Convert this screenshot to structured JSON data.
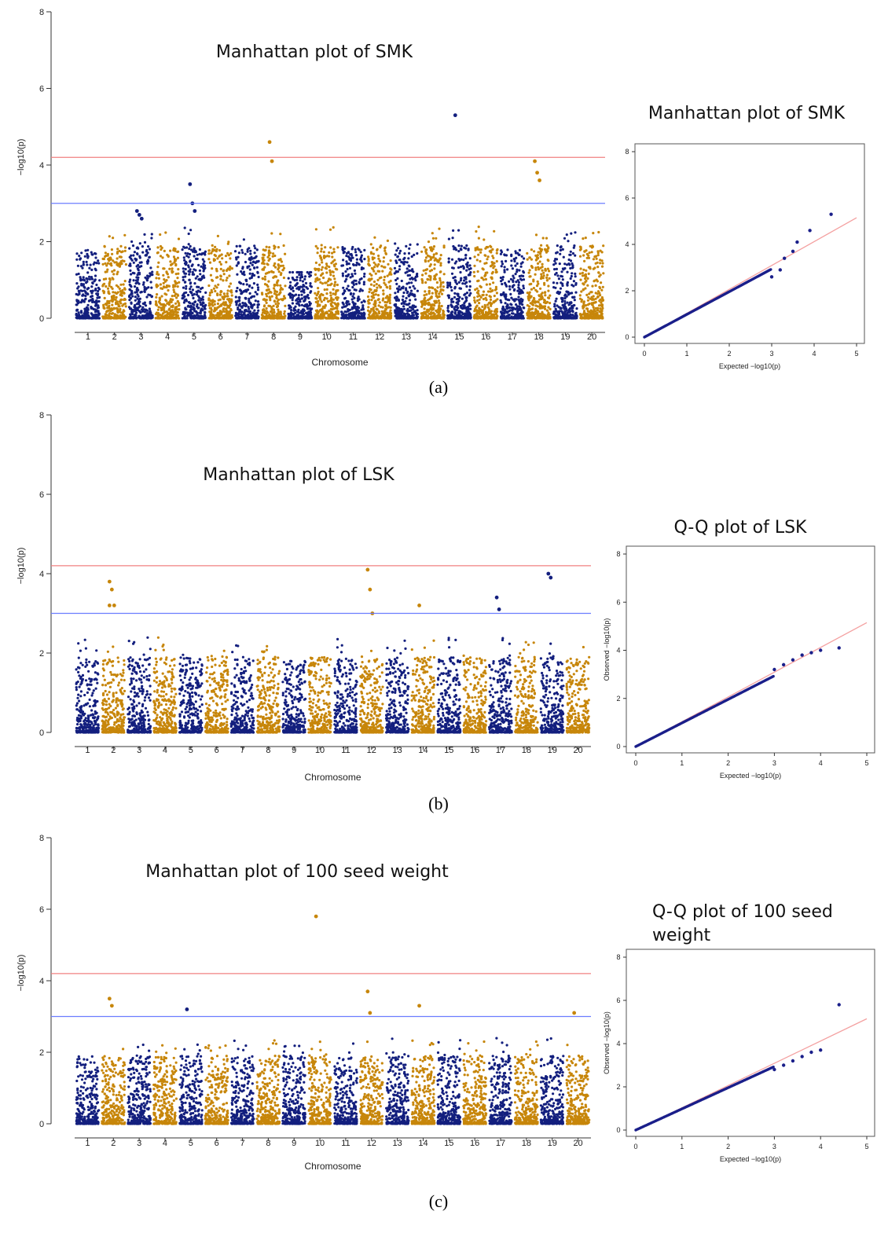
{
  "colors": {
    "blue": "#131f7e",
    "gold": "#c7860a",
    "red_line": "#f08080",
    "blue_line": "#6b7dff",
    "qq_line": "#f4a0a0",
    "qq_point": "#1a1f8a"
  },
  "panels": [
    {
      "label": "(a)",
      "manhattan_title": "Manhattan plot of SMK",
      "qq_title": "Manhattan plot of SMK",
      "qq_ylabel": ""
    },
    {
      "label": "(b)",
      "manhattan_title": "Manhattan plot of LSK",
      "qq_title": "Q-Q plot of LSK",
      "qq_ylabel": "Observed −log10(p)"
    },
    {
      "label": "(c)",
      "manhattan_title": "Manhattan plot of 100 seed weight",
      "qq_title": "Q-Q plot of 100 seed weight",
      "qq_ylabel": "Observed −log10(p)"
    }
  ],
  "chart_data": [
    {
      "type": "scatter",
      "subtype": "manhattan",
      "title": "Manhattan plot of SMK",
      "xlabel": "Chromosome",
      "ylabel": "−log10(p)",
      "categories": [
        "1",
        "2",
        "3",
        "4",
        "5",
        "6",
        "7",
        "8",
        "9",
        "10",
        "11",
        "12",
        "13",
        "14",
        "15",
        "16",
        "17",
        "18",
        "19",
        "20"
      ],
      "ylim": [
        0,
        8
      ],
      "yticks": [
        0,
        2,
        4,
        6,
        8
      ],
      "thresholds": [
        4.2,
        3.0
      ],
      "chrom_max": [
        1.8,
        2.2,
        2.8,
        2.4,
        3.5,
        2.2,
        2.1,
        4.6,
        1.2,
        2.4,
        1.9,
        2.2,
        2.0,
        2.4,
        5.3,
        2.4,
        1.8,
        4.1,
        2.5,
        2.5
      ],
      "peaks": [
        {
          "chrom": 3,
          "values": [
            2.8,
            2.7,
            2.6
          ]
        },
        {
          "chrom": 5,
          "values": [
            3.5,
            3.0,
            2.8
          ]
        },
        {
          "chrom": 8,
          "values": [
            4.6,
            4.1
          ]
        },
        {
          "chrom": 15,
          "values": [
            5.3
          ]
        },
        {
          "chrom": 18,
          "values": [
            4.1,
            3.8,
            3.6
          ]
        }
      ]
    },
    {
      "type": "scatter",
      "subtype": "qq",
      "title": "Manhattan plot of SMK",
      "xlabel": "Expected −log10(p)",
      "ylabel": "",
      "xlim": [
        0,
        5
      ],
      "ylim": [
        0,
        8
      ],
      "xticks": [
        0,
        1,
        2,
        3,
        4,
        5
      ],
      "yticks": [
        0,
        2,
        4,
        6,
        8
      ],
      "tail_points": [
        [
          3.0,
          2.6
        ],
        [
          3.2,
          2.9
        ],
        [
          3.3,
          3.4
        ],
        [
          3.5,
          3.7
        ],
        [
          3.6,
          4.1
        ],
        [
          3.9,
          4.6
        ],
        [
          4.4,
          5.3
        ]
      ]
    },
    {
      "type": "scatter",
      "subtype": "manhattan",
      "title": "Manhattan plot of LSK",
      "xlabel": "Chromosome",
      "ylabel": "−log10(p)",
      "categories": [
        "1",
        "2",
        "3",
        "4",
        "5",
        "6",
        "7",
        "8",
        "9",
        "10",
        "11",
        "12",
        "13",
        "14",
        "15",
        "16",
        "17",
        "18",
        "19",
        "20"
      ],
      "ylim": [
        0,
        8
      ],
      "yticks": [
        0,
        2,
        4,
        6,
        8
      ],
      "thresholds": [
        4.2,
        3.0
      ],
      "chrom_max": [
        2.6,
        3.8,
        2.5,
        2.5,
        2.1,
        2.1,
        2.6,
        3.0,
        1.8,
        2.1,
        3.0,
        4.1,
        2.4,
        3.2,
        2.7,
        2.1,
        3.4,
        3.0,
        4.0,
        2.2
      ],
      "peaks": [
        {
          "chrom": 2,
          "values": [
            3.8,
            3.6,
            3.2,
            3.2
          ]
        },
        {
          "chrom": 12,
          "values": [
            4.1,
            3.6,
            3.0
          ]
        },
        {
          "chrom": 14,
          "values": [
            3.2
          ]
        },
        {
          "chrom": 17,
          "values": [
            3.4,
            3.1
          ]
        },
        {
          "chrom": 19,
          "values": [
            4.0,
            3.9
          ]
        }
      ]
    },
    {
      "type": "scatter",
      "subtype": "qq",
      "title": "Q-Q plot of LSK",
      "xlabel": "Expected −log10(p)",
      "ylabel": "Observed −log10(p)",
      "xlim": [
        0,
        5
      ],
      "ylim": [
        0,
        8
      ],
      "xticks": [
        0,
        1,
        2,
        3,
        4,
        5
      ],
      "yticks": [
        0,
        2,
        4,
        6,
        8
      ],
      "tail_points": [
        [
          3.0,
          3.2
        ],
        [
          3.2,
          3.4
        ],
        [
          3.4,
          3.6
        ],
        [
          3.6,
          3.8
        ],
        [
          3.8,
          3.9
        ],
        [
          4.0,
          4.0
        ],
        [
          4.4,
          4.1
        ]
      ]
    },
    {
      "type": "scatter",
      "subtype": "manhattan",
      "title": "Manhattan plot of 100 seed weight",
      "xlabel": "Chromosome",
      "ylabel": "−log10(p)",
      "categories": [
        "1",
        "2",
        "3",
        "4",
        "5",
        "6",
        "7",
        "8",
        "9",
        "10",
        "11",
        "12",
        "13",
        "14",
        "15",
        "16",
        "17",
        "18",
        "19",
        "20"
      ],
      "ylim": [
        0,
        8
      ],
      "yticks": [
        0,
        2,
        4,
        6,
        8
      ],
      "thresholds": [
        4.2,
        3.0
      ],
      "chrom_max": [
        1.9,
        3.5,
        3.0,
        2.2,
        3.2,
        2.8,
        2.8,
        2.4,
        2.2,
        5.8,
        2.3,
        3.7,
        2.5,
        3.3,
        2.8,
        2.8,
        2.4,
        2.8,
        2.4,
        3.1
      ],
      "peaks": [
        {
          "chrom": 2,
          "values": [
            3.5,
            3.3
          ]
        },
        {
          "chrom": 5,
          "values": [
            3.2
          ]
        },
        {
          "chrom": 10,
          "values": [
            5.8
          ]
        },
        {
          "chrom": 12,
          "values": [
            3.7,
            3.1
          ]
        },
        {
          "chrom": 14,
          "values": [
            3.3
          ]
        },
        {
          "chrom": 20,
          "values": [
            3.1
          ]
        }
      ]
    },
    {
      "type": "scatter",
      "subtype": "qq",
      "title": "Q-Q plot of 100 seed weight",
      "xlabel": "Expected −log10(p)",
      "ylabel": "Observed −log10(p)",
      "xlim": [
        0,
        5
      ],
      "ylim": [
        0,
        8
      ],
      "xticks": [
        0,
        1,
        2,
        3,
        4,
        5
      ],
      "yticks": [
        0,
        2,
        4,
        6,
        8
      ],
      "tail_points": [
        [
          3.0,
          2.8
        ],
        [
          3.2,
          3.0
        ],
        [
          3.4,
          3.2
        ],
        [
          3.6,
          3.4
        ],
        [
          3.8,
          3.6
        ],
        [
          4.0,
          3.7
        ],
        [
          4.4,
          5.8
        ]
      ]
    }
  ]
}
